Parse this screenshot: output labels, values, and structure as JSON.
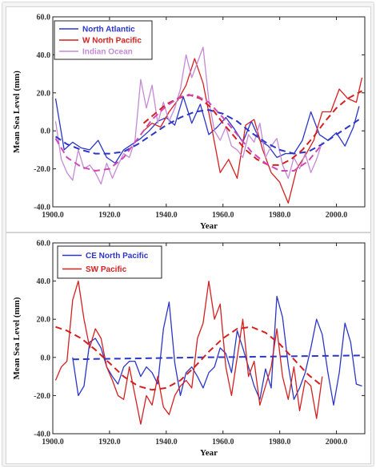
{
  "chart_data": [
    {
      "type": "line",
      "xlabel": "Year",
      "ylabel": "Mean Sea Level (mm)",
      "xlim": [
        1900,
        2010
      ],
      "ylim": [
        -40,
        60
      ],
      "xticks": [
        1900,
        1920,
        1940,
        1960,
        1980,
        2000
      ],
      "yticks": [
        -40,
        -20,
        0,
        20,
        40,
        60
      ],
      "x_tick_labels": [
        "1900.0",
        "1920.0",
        "1940.0",
        "1960.0",
        "1980.0",
        "2000.0"
      ],
      "y_tick_labels": [
        "-40.0",
        "-20.0",
        "0.0",
        "20.0",
        "40.0",
        "60.0"
      ],
      "legend_position": "top-left",
      "grid": false,
      "series": [
        {
          "name": "North Atlantic",
          "color": "#2b35c8",
          "style": "solid",
          "x": [
            1901,
            1904,
            1907,
            1910,
            1913,
            1916,
            1919,
            1922,
            1925,
            1928,
            1931,
            1934,
            1937,
            1940,
            1943,
            1946,
            1949,
            1952,
            1955,
            1958,
            1961,
            1964,
            1967,
            1970,
            1973,
            1976,
            1979,
            1982,
            1985,
            1988,
            1991,
            1994,
            1997,
            2000,
            2003,
            2006,
            2008
          ],
          "y": [
            17,
            -10,
            -6,
            -9,
            -10,
            -5,
            -14,
            -17,
            -10,
            -7,
            -4,
            0,
            5,
            7,
            3,
            18,
            4,
            14,
            -2,
            2,
            7,
            1,
            -6,
            5,
            -5,
            -8,
            -14,
            -12,
            -12,
            -5,
            10,
            -2,
            -5,
            -1,
            -8,
            2,
            13
          ]
        },
        {
          "name": "W North Pacific",
          "color": "#d42020",
          "style": "solid",
          "x": [
            1932,
            1935,
            1938,
            1941,
            1944,
            1947,
            1950,
            1953,
            1956,
            1959,
            1962,
            1965,
            1968,
            1971,
            1974,
            1977,
            1980,
            1983,
            1986,
            1989,
            1992,
            1995,
            1998,
            2001,
            2004,
            2007,
            2009
          ],
          "y": [
            0,
            4,
            2,
            10,
            16,
            24,
            38,
            25,
            2,
            -22,
            -15,
            -25,
            3,
            6,
            -10,
            -22,
            -27,
            -38,
            -20,
            -13,
            -5,
            10,
            10,
            22,
            17,
            15,
            28
          ]
        },
        {
          "name": "Indian Ocean",
          "color": "#c48ad6",
          "style": "solid",
          "x": [
            1901,
            1903,
            1905,
            1907,
            1909,
            1911,
            1913,
            1915,
            1917,
            1919,
            1921,
            1923,
            1925,
            1927,
            1929,
            1931,
            1933,
            1935,
            1937,
            1939,
            1941,
            1943,
            1945,
            1947,
            1949,
            1951,
            1953,
            1955,
            1957,
            1959,
            1961,
            1963,
            1965,
            1967,
            1969,
            1971,
            1973,
            1975,
            1977,
            1979,
            1981,
            1983,
            1985,
            1987,
            1989,
            1991,
            1993,
            1995
          ],
          "y": [
            5,
            -15,
            -22,
            -26,
            -10,
            -20,
            -18,
            -22,
            -28,
            -17,
            -25,
            -18,
            -12,
            -14,
            -5,
            27,
            12,
            24,
            4,
            15,
            5,
            12,
            22,
            40,
            28,
            36,
            44,
            16,
            0,
            -5,
            2,
            -8,
            -10,
            -14,
            -2,
            -6,
            4,
            -14,
            -8,
            -4,
            -18,
            -25,
            -14,
            -20,
            -12,
            -22,
            -15,
            -6
          ]
        },
        {
          "name": "",
          "color": "#2b35c8",
          "style": "dashed",
          "x": [
            1901,
            1905,
            1910,
            1915,
            1920,
            1925,
            1930,
            1935,
            1940,
            1945,
            1950,
            1955,
            1960,
            1965,
            1970,
            1975,
            1980,
            1985,
            1990,
            1995,
            2000,
            2005,
            2008
          ],
          "y": [
            -3,
            -7,
            -10,
            -12,
            -12,
            -11,
            -7,
            -2,
            3,
            7,
            10,
            11,
            9,
            5,
            -1,
            -6,
            -10,
            -12,
            -11,
            -7,
            -2,
            3,
            6
          ]
        },
        {
          "name": "",
          "color": "#d42020",
          "style": "dashed",
          "x": [
            1932,
            1936,
            1940,
            1944,
            1948,
            1952,
            1956,
            1960,
            1964,
            1968,
            1972,
            1976,
            1980,
            1984,
            1988,
            1992,
            1996,
            2000,
            2004,
            2009
          ],
          "y": [
            4,
            9,
            14,
            17,
            19,
            17,
            12,
            4,
            -3,
            -10,
            -15,
            -18,
            -18,
            -15,
            -10,
            -3,
            5,
            12,
            17,
            21
          ]
        },
        {
          "name": "",
          "color": "#d048b8",
          "style": "dashed",
          "x": [
            1901,
            1905,
            1910,
            1915,
            1920,
            1925,
            1930,
            1935,
            1940,
            1945,
            1950,
            1955,
            1960,
            1965,
            1970,
            1975,
            1980,
            1985,
            1990,
            1995
          ],
          "y": [
            -4,
            -14,
            -19,
            -21,
            -20,
            -14,
            -4,
            6,
            13,
            18,
            19,
            15,
            7,
            -2,
            -11,
            -17,
            -21,
            -21,
            -16,
            -7
          ]
        }
      ]
    },
    {
      "type": "line",
      "xlabel": "Year",
      "ylabel": "Mean Sea Level (mm)",
      "xlim": [
        1900,
        2010
      ],
      "ylim": [
        -40,
        60
      ],
      "xticks": [
        1900,
        1920,
        1940,
        1960,
        1980,
        2000
      ],
      "yticks": [
        -40,
        -20,
        0,
        20,
        40,
        60
      ],
      "x_tick_labels": [
        "1900.0",
        "1920.0",
        "1940.0",
        "1960.0",
        "1980.0",
        "2000.0"
      ],
      "y_tick_labels": [
        "-40.0",
        "-20.0",
        "0.0",
        "20.0",
        "40.0",
        "60.0"
      ],
      "legend_position": "top-left",
      "grid": false,
      "series": [
        {
          "name": "CE North Pacific",
          "color": "#2b35c8",
          "style": "solid",
          "x": [
            1907,
            1909,
            1911,
            1913,
            1915,
            1917,
            1919,
            1921,
            1923,
            1925,
            1927,
            1929,
            1931,
            1933,
            1935,
            1937,
            1939,
            1941,
            1943,
            1945,
            1947,
            1949,
            1951,
            1953,
            1955,
            1957,
            1959,
            1961,
            1963,
            1965,
            1967,
            1969,
            1971,
            1973,
            1975,
            1977,
            1979,
            1981,
            1983,
            1985,
            1987,
            1989,
            1991,
            1993,
            1995,
            1997,
            1999,
            2001,
            2003,
            2005,
            2007,
            2009
          ],
          "y": [
            0,
            -20,
            -15,
            8,
            10,
            5,
            -5,
            -10,
            -14,
            -5,
            -2,
            -2,
            -10,
            -5,
            -8,
            -14,
            15,
            29,
            -3,
            -20,
            -8,
            -5,
            -10,
            -16,
            -8,
            -5,
            5,
            2,
            -8,
            14,
            5,
            -5,
            -15,
            -22,
            -6,
            -16,
            32,
            21,
            -4,
            -22,
            -16,
            -8,
            5,
            20,
            12,
            -8,
            -25,
            -8,
            18,
            8,
            -14,
            -15
          ]
        },
        {
          "name": "SW Pacific",
          "color": "#d42020",
          "style": "solid",
          "x": [
            1901,
            1903,
            1905,
            1907,
            1909,
            1911,
            1913,
            1915,
            1917,
            1919,
            1921,
            1923,
            1925,
            1927,
            1929,
            1931,
            1933,
            1935,
            1937,
            1939,
            1941,
            1943,
            1945,
            1947,
            1949,
            1951,
            1953,
            1955,
            1957,
            1959,
            1961,
            1963,
            1965,
            1967,
            1969,
            1971,
            1973,
            1975,
            1977,
            1979,
            1981,
            1983,
            1985,
            1987,
            1989,
            1991,
            1993,
            1995
          ],
          "y": [
            -12,
            -5,
            -2,
            30,
            40,
            20,
            5,
            15,
            10,
            -5,
            -12,
            -20,
            -22,
            -5,
            -20,
            -35,
            -20,
            -25,
            -10,
            -26,
            -30,
            -20,
            -15,
            -12,
            -16,
            10,
            18,
            40,
            20,
            28,
            -5,
            -20,
            0,
            20,
            -10,
            -2,
            -25,
            -15,
            -5,
            15,
            -10,
            -22,
            -5,
            -28,
            -12,
            -15,
            -32,
            -10
          ]
        },
        {
          "name": "",
          "color": "#2b35c8",
          "style": "dashed",
          "x": [
            1907,
            1920,
            1935,
            1950,
            1965,
            1980,
            1995,
            2009
          ],
          "y": [
            -1,
            -0.7,
            -0.4,
            0,
            0.2,
            0.5,
            0.8,
            1
          ]
        },
        {
          "name": "",
          "color": "#d42020",
          "style": "dashed",
          "x": [
            1901,
            1905,
            1910,
            1915,
            1920,
            1925,
            1930,
            1935,
            1940,
            1945,
            1950,
            1955,
            1960,
            1965,
            1970,
            1975,
            1980,
            1985,
            1990,
            1995
          ],
          "y": [
            16,
            14,
            10,
            4,
            -3,
            -10,
            -15,
            -17,
            -16,
            -12,
            -5,
            3,
            10,
            15,
            16,
            13,
            7,
            -1,
            -9,
            -15
          ]
        }
      ]
    }
  ]
}
